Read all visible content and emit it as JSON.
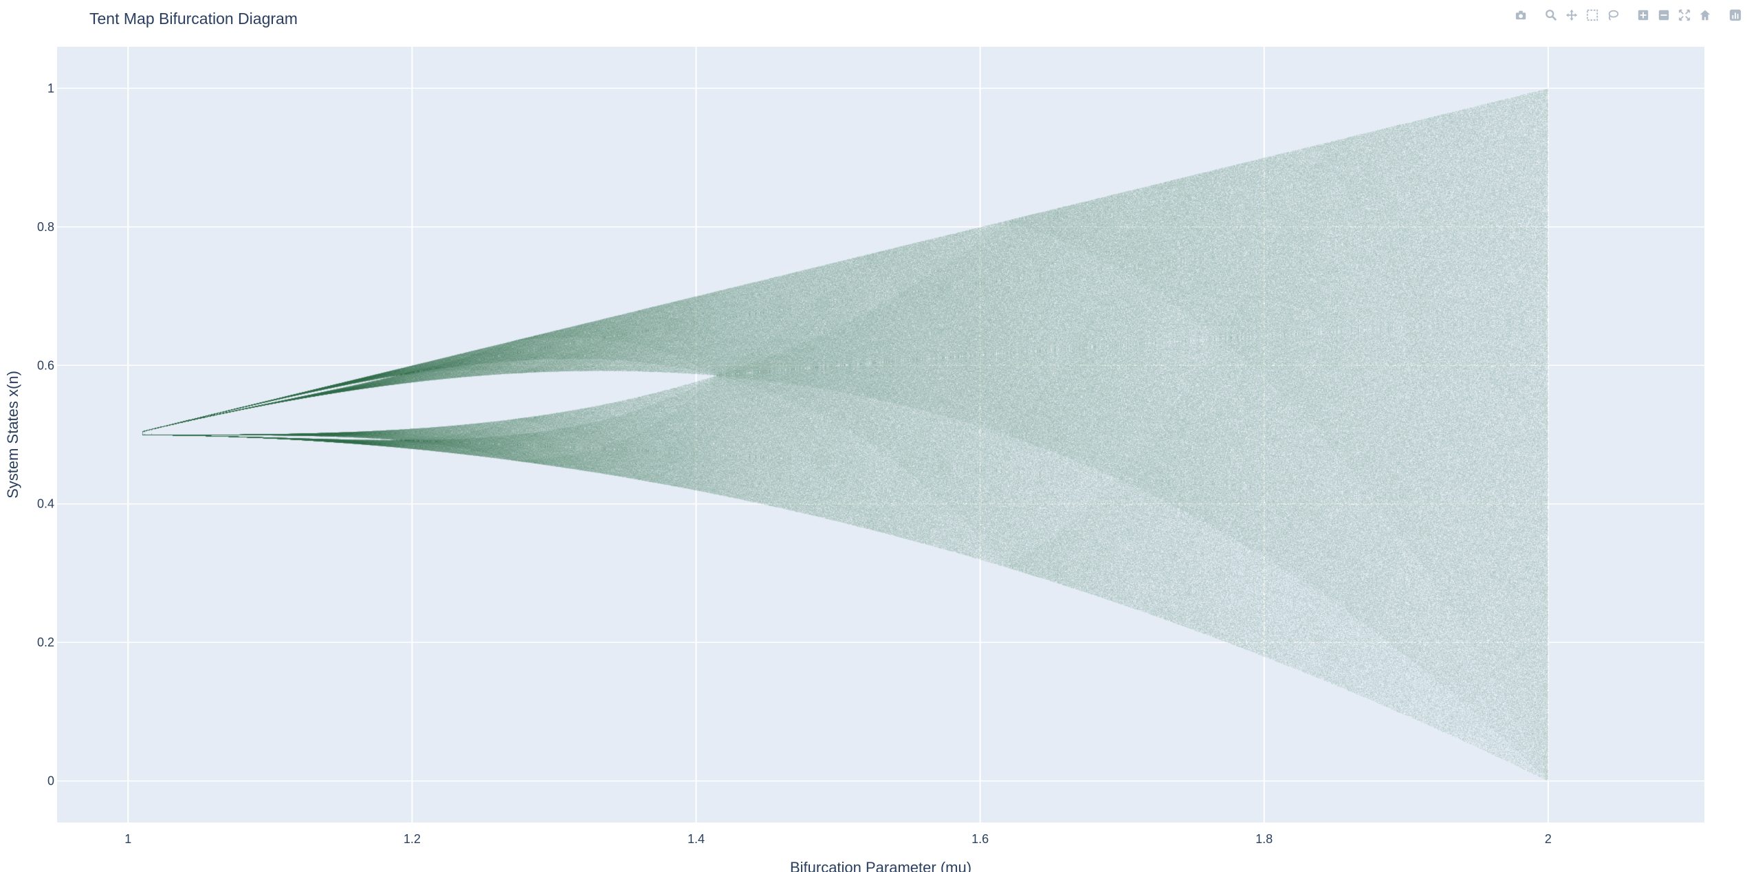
{
  "title": "Tent Map Bifurcation Diagram",
  "modebar": [
    {
      "name": "camera-icon",
      "label": "Download plot as a png"
    },
    {
      "name": "zoom-icon",
      "label": "Zoom"
    },
    {
      "name": "pan-icon",
      "label": "Pan"
    },
    {
      "name": "box-select-icon",
      "label": "Box Select"
    },
    {
      "name": "lasso-select-icon",
      "label": "Lasso Select"
    },
    {
      "name": "zoom-in-icon",
      "label": "Zoom in"
    },
    {
      "name": "zoom-out-icon",
      "label": "Zoom out"
    },
    {
      "name": "autoscale-icon",
      "label": "Autoscale"
    },
    {
      "name": "reset-axes-icon",
      "label": "Reset axes"
    },
    {
      "name": "plotly-logo-icon",
      "label": "Produced with Plotly"
    }
  ],
  "chart_data": {
    "type": "scatter",
    "title": "Tent Map Bifurcation Diagram",
    "xlabel": "Bifurcation Parameter (mu)",
    "ylabel": "System States x(n)",
    "xlim": [
      0.95,
      2.11
    ],
    "ylim": [
      -0.06,
      1.06
    ],
    "xticks": [
      1,
      1.2,
      1.4,
      1.6,
      1.8,
      2
    ],
    "xtick_labels": [
      "1",
      "1.2",
      "1.4",
      "1.6",
      "1.8",
      "2"
    ],
    "yticks": [
      0,
      0.2,
      0.4,
      0.6,
      0.8,
      1
    ],
    "ytick_labels": [
      "0",
      "0.2",
      "0.4",
      "0.6",
      "0.8",
      "1"
    ],
    "mu_range": [
      1.01,
      2.0
    ],
    "grid": true,
    "colors": {
      "plot_bg": "#e5ecf6",
      "grid": "#ffffff",
      "marker_dense": "#2e6b48",
      "marker_sparse": "#c9d9d9"
    },
    "legend": "none"
  }
}
